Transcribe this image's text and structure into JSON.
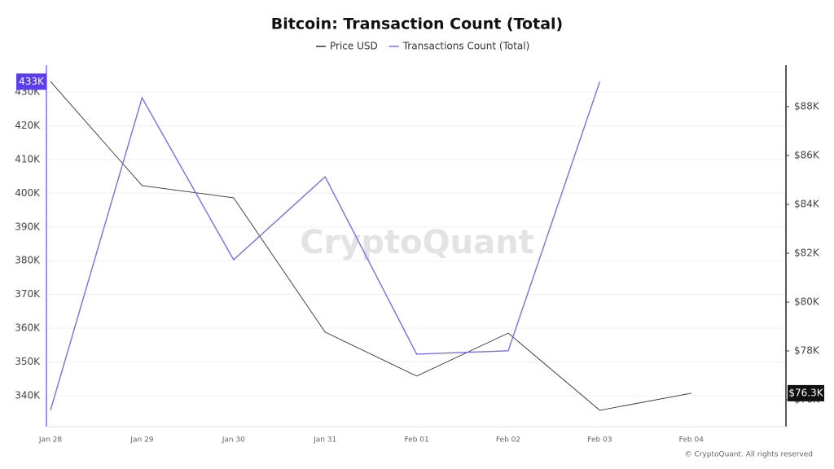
{
  "chart_data": {
    "type": "line",
    "title": "Bitcoin: Transaction Count (Total)",
    "watermark": "CryptoQuant",
    "footer": "© CryptoQuant. All rights reserved",
    "categories": [
      "Jan 28",
      "Jan 29",
      "Jan 30",
      "Jan 31",
      "Feb 01",
      "Feb 02",
      "Feb 03",
      "Feb 04"
    ],
    "series": [
      {
        "name": "Price USD",
        "color": "#333333",
        "axis": "y2",
        "values": [
          89030,
          84770,
          84270,
          78770,
          76970,
          78730,
          75570,
          76270
        ],
        "value_labels": [
          null,
          null,
          null,
          null,
          null,
          null,
          null,
          "$76.3K"
        ]
      },
      {
        "name": "Transactions Count (Total)",
        "color": "#7b6cf0",
        "values": [
          335700,
          428300,
          380300,
          404900,
          352300,
          353300,
          433100,
          null
        ],
        "value_labels": [
          null,
          null,
          null,
          null,
          null,
          null,
          "433K",
          null
        ]
      }
    ],
    "ylim": [
      330800,
      438000
    ],
    "yticks": [
      {
        "value": 340000,
        "label": "340K"
      },
      {
        "value": 350000,
        "label": "350K"
      },
      {
        "value": 360000,
        "label": "360K"
      },
      {
        "value": 370000,
        "label": "370K"
      },
      {
        "value": 380000,
        "label": "380K"
      },
      {
        "value": 390000,
        "label": "390K"
      },
      {
        "value": 400000,
        "label": "400K"
      },
      {
        "value": 410000,
        "label": "410K"
      },
      {
        "value": 420000,
        "label": "420K"
      },
      {
        "value": 430000,
        "label": "430K"
      }
    ],
    "y2lim": [
      74900,
      89700
    ],
    "y2ticks": [
      {
        "value": 76000,
        "label": "$76K"
      },
      {
        "value": 78000,
        "label": "$78K"
      },
      {
        "value": 80000,
        "label": "$80K"
      },
      {
        "value": 82000,
        "label": "$82K"
      },
      {
        "value": 84000,
        "label": "$84K"
      },
      {
        "value": 86000,
        "label": "$86K"
      },
      {
        "value": 88000,
        "label": "$88K"
      }
    ],
    "grid": true
  }
}
